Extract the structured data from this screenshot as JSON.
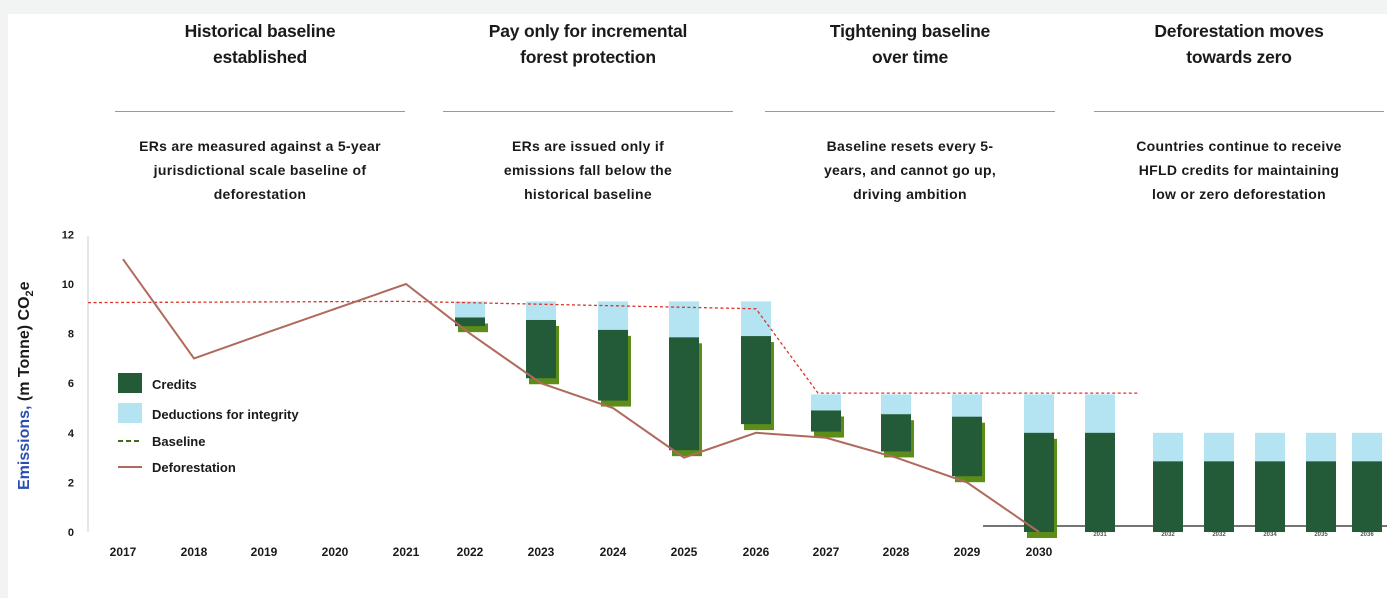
{
  "panels": [
    {
      "title_line1": "Historical baseline",
      "title_line2": "established",
      "text_line1": "ERs are measured against a 5-year",
      "text_line2": "jurisdictional scale baseline of",
      "text_line3": "deforestation"
    },
    {
      "title_line1": "Pay only for incremental",
      "title_line2": "forest protection",
      "text_line1": "ERs are issued only if",
      "text_line2": "emissions fall below the",
      "text_line3": "historical baseline"
    },
    {
      "title_line1": "Tightening baseline",
      "title_line2": "over time",
      "text_line1": "Baseline resets every 5-",
      "text_line2": "years, and cannot go up,",
      "text_line3": "driving ambition"
    },
    {
      "title_line1": "Deforestation moves",
      "title_line2": "towards zero",
      "text_line1": "Countries continue to receive",
      "text_line2": "HFLD credits for maintaining",
      "text_line3": "low or zero deforestation"
    }
  ],
  "colors": {
    "credits": "#235a37",
    "deductions": "#b4e4f2",
    "shadow": "#5c8d18",
    "deforestation": "#b06a5c",
    "baseline": "#d9352a"
  },
  "chart_data": {
    "type": "bar",
    "ylabel_part1": "Emissions,",
    "ylabel_part2": "(m Tonne) CO",
    "ylabel_sub": "2",
    "ylabel_part3": "e",
    "ylim": [
      0,
      12
    ],
    "yticks": [
      "0",
      "2",
      "4",
      "6",
      "8",
      "10",
      "12"
    ],
    "x": [
      "2017",
      "2018",
      "2019",
      "2020",
      "2021",
      "2022",
      "2023",
      "2024",
      "2025",
      "2026",
      "2027",
      "2028",
      "2029",
      "2030",
      "2031",
      "2032",
      "2032",
      "2034",
      "2035",
      "2036"
    ],
    "legend": [
      {
        "key": "credits",
        "label": "Credits"
      },
      {
        "key": "deductions",
        "label": "Deductions for integrity"
      },
      {
        "key": "baseline",
        "label": "Baseline"
      },
      {
        "key": "deforestation",
        "label": "Deforestation"
      }
    ],
    "deforestation": [
      11.0,
      7.0,
      8.0,
      9.0,
      10.0,
      8.0,
      6.0,
      5.0,
      3.0,
      4.0,
      3.8,
      3.0,
      2.0,
      0.0
    ],
    "baseline": [
      {
        "x": "2017",
        "y": 9.25
      },
      {
        "x": "2021",
        "y": 9.3
      },
      {
        "x": "2026",
        "y": 9.0
      },
      {
        "x": "2027",
        "y": 5.6
      },
      {
        "x": "2031",
        "y": 5.6
      }
    ],
    "bars": [
      {
        "year": "2022",
        "deforestation": 8.3,
        "credits_top": 8.65,
        "baseline": 9.3
      },
      {
        "year": "2023",
        "deforestation": 6.2,
        "credits_top": 8.55,
        "baseline": 9.3
      },
      {
        "year": "2024",
        "deforestation": 5.3,
        "credits_top": 8.15,
        "baseline": 9.3
      },
      {
        "year": "2025",
        "deforestation": 3.3,
        "credits_top": 7.85,
        "baseline": 9.3
      },
      {
        "year": "2026",
        "deforestation": 4.35,
        "credits_top": 7.9,
        "baseline": 9.3
      },
      {
        "year": "2027",
        "deforestation": 4.05,
        "credits_top": 4.9,
        "baseline": 5.55
      },
      {
        "year": "2028",
        "deforestation": 3.25,
        "credits_top": 4.75,
        "baseline": 5.55
      },
      {
        "year": "2029",
        "deforestation": 2.25,
        "credits_top": 4.65,
        "baseline": 5.55
      },
      {
        "year": "2030",
        "deforestation": 0.0,
        "credits_top": 4.0,
        "baseline": 5.55
      },
      {
        "year": "2031",
        "deforestation": 0.0,
        "credits_top": 4.0,
        "baseline": 5.55
      },
      {
        "year": "2032",
        "deforestation": 0.0,
        "credits_top": 2.85,
        "baseline": 4.0
      },
      {
        "year": "2032",
        "deforestation": 0.0,
        "credits_top": 2.85,
        "baseline": 4.0
      },
      {
        "year": "2034",
        "deforestation": 0.0,
        "credits_top": 2.85,
        "baseline": 4.0
      },
      {
        "year": "2035",
        "deforestation": 0.0,
        "credits_top": 2.85,
        "baseline": 4.0
      },
      {
        "year": "2036",
        "deforestation": 0.0,
        "credits_top": 2.85,
        "baseline": 4.0
      }
    ]
  }
}
